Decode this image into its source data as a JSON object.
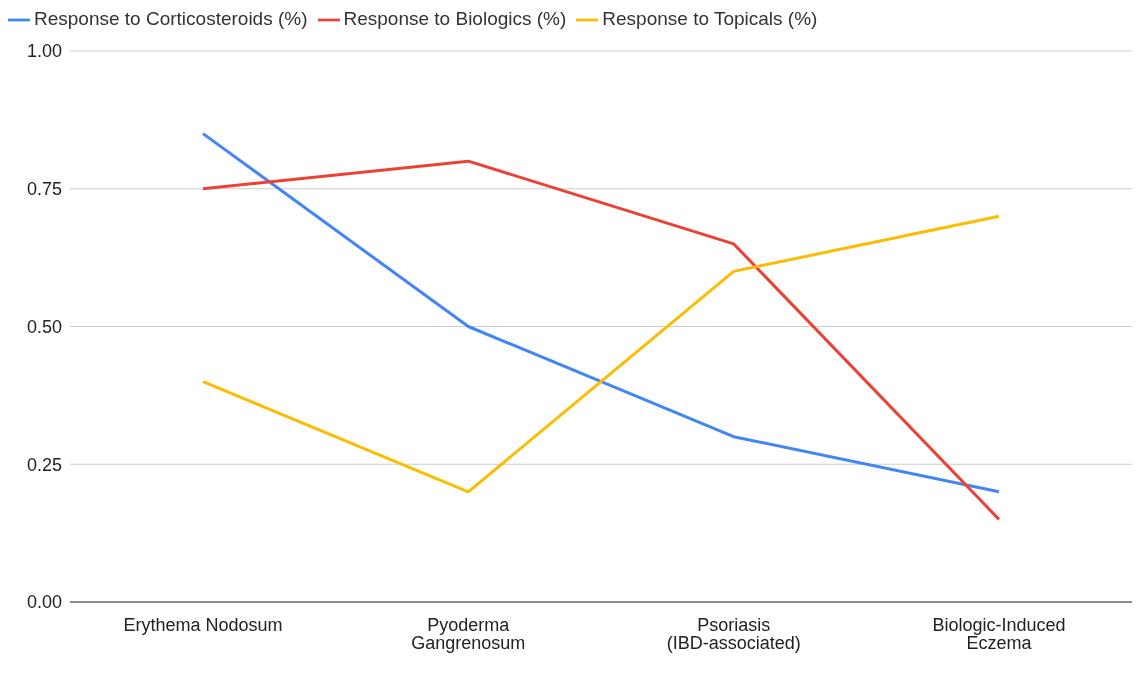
{
  "chart_data": {
    "type": "line",
    "categories": [
      "Erythema Nodosum",
      "Pyoderma Gangrenosum",
      "Psoriasis (IBD-associated)",
      "Biologic-Induced Eczema"
    ],
    "series": [
      {
        "name": "Response to Corticosteroids (%)",
        "color": "#4285f4",
        "values": [
          0.85,
          0.5,
          0.3,
          0.2
        ]
      },
      {
        "name": "Response to Biologics (%)",
        "color": "#ea4335",
        "values": [
          0.75,
          0.8,
          0.65,
          0.15
        ]
      },
      {
        "name": "Response to Topicals (%)",
        "color": "#fbbc04",
        "values": [
          0.4,
          0.2,
          0.6,
          0.7
        ]
      }
    ],
    "ylim": [
      0,
      1
    ],
    "yticks": [
      {
        "value": 0,
        "label": "0.00"
      },
      {
        "value": 0.25,
        "label": "0.25"
      },
      {
        "value": 0.5,
        "label": "0.50"
      },
      {
        "value": 0.75,
        "label": "0.75"
      },
      {
        "value": 1,
        "label": "1.00"
      }
    ],
    "grid": "y",
    "legend": "top left",
    "marker": "none",
    "line_style": "solid"
  }
}
